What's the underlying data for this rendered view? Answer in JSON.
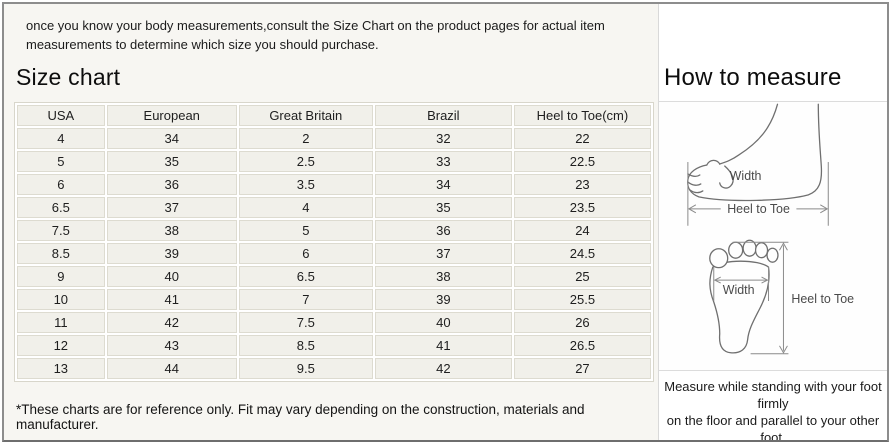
{
  "intro": "once you know your body measurements,consult the Size Chart on the product pages for actual item measurements to determine which size you should purchase.",
  "size_chart": {
    "title": "Size chart",
    "columns": [
      "USA",
      "European",
      "Great Britain",
      "Brazil",
      "Heel to Toe(cm)"
    ],
    "rows": [
      [
        "4",
        "34",
        "2",
        "32",
        "22"
      ],
      [
        "5",
        "35",
        "2.5",
        "33",
        "22.5"
      ],
      [
        "6",
        "36",
        "3.5",
        "34",
        "23"
      ],
      [
        "6.5",
        "37",
        "4",
        "35",
        "23.5"
      ],
      [
        "7.5",
        "38",
        "5",
        "36",
        "24"
      ],
      [
        "8.5",
        "39",
        "6",
        "37",
        "24.5"
      ],
      [
        "9",
        "40",
        "6.5",
        "38",
        "25"
      ],
      [
        "10",
        "41",
        "7",
        "39",
        "25.5"
      ],
      [
        "11",
        "42",
        "7.5",
        "40",
        "26"
      ],
      [
        "12",
        "43",
        "8.5",
        "41",
        "26.5"
      ],
      [
        "13",
        "44",
        "9.5",
        "42",
        "27"
      ]
    ],
    "footnote": "*These charts are for reference only. Fit may vary depending on the construction, materials and manufacturer."
  },
  "how_to_measure": {
    "title": "How to measure",
    "side_view": {
      "width_label": "Width",
      "heel_to_toe_label": "Heel to Toe"
    },
    "top_view": {
      "width_label": "Width",
      "heel_to_toe_label": "Heel to Toe"
    },
    "instruction_line1": "Measure while standing with your foot firmly",
    "instruction_line2": "on the floor and parallel to your other foot."
  },
  "colors": {
    "cell_bg": "#f1f0ea",
    "cell_border": "#dddbd0",
    "outer_border": "#8d8d8d",
    "divider": "#dcdcdc",
    "diagram_stroke": "#6f6f6f"
  }
}
